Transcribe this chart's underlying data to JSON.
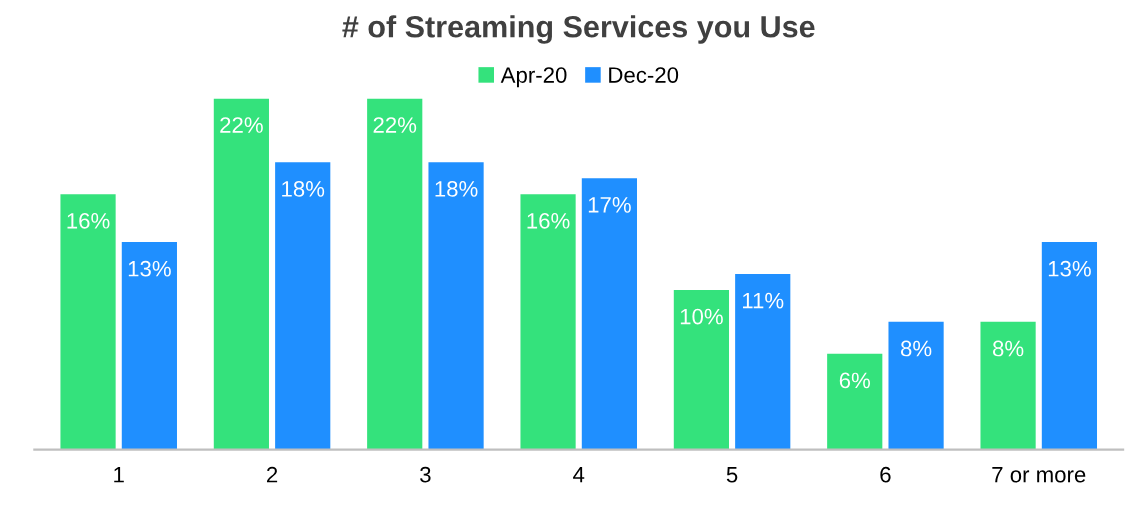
{
  "chart_data": {
    "type": "bar",
    "title": "# of Streaming Services you Use",
    "categories": [
      "1",
      "2",
      "3",
      "4",
      "5",
      "6",
      "7 or more"
    ],
    "series": [
      {
        "name": "Apr-20",
        "color": "#34e27c",
        "values": [
          16,
          22,
          22,
          16,
          10,
          6,
          8
        ],
        "value_labels": [
          "16%",
          "22%",
          "22%",
          "16%",
          "10%",
          "6%",
          "8%"
        ]
      },
      {
        "name": "Dec-20",
        "color": "#1f8fff",
        "values": [
          13,
          18,
          18,
          17,
          11,
          8,
          13
        ],
        "value_labels": [
          "13%",
          "18%",
          "18%",
          "17%",
          "11%",
          "8%",
          "13%"
        ]
      }
    ],
    "legend": "top",
    "grid": false
  }
}
